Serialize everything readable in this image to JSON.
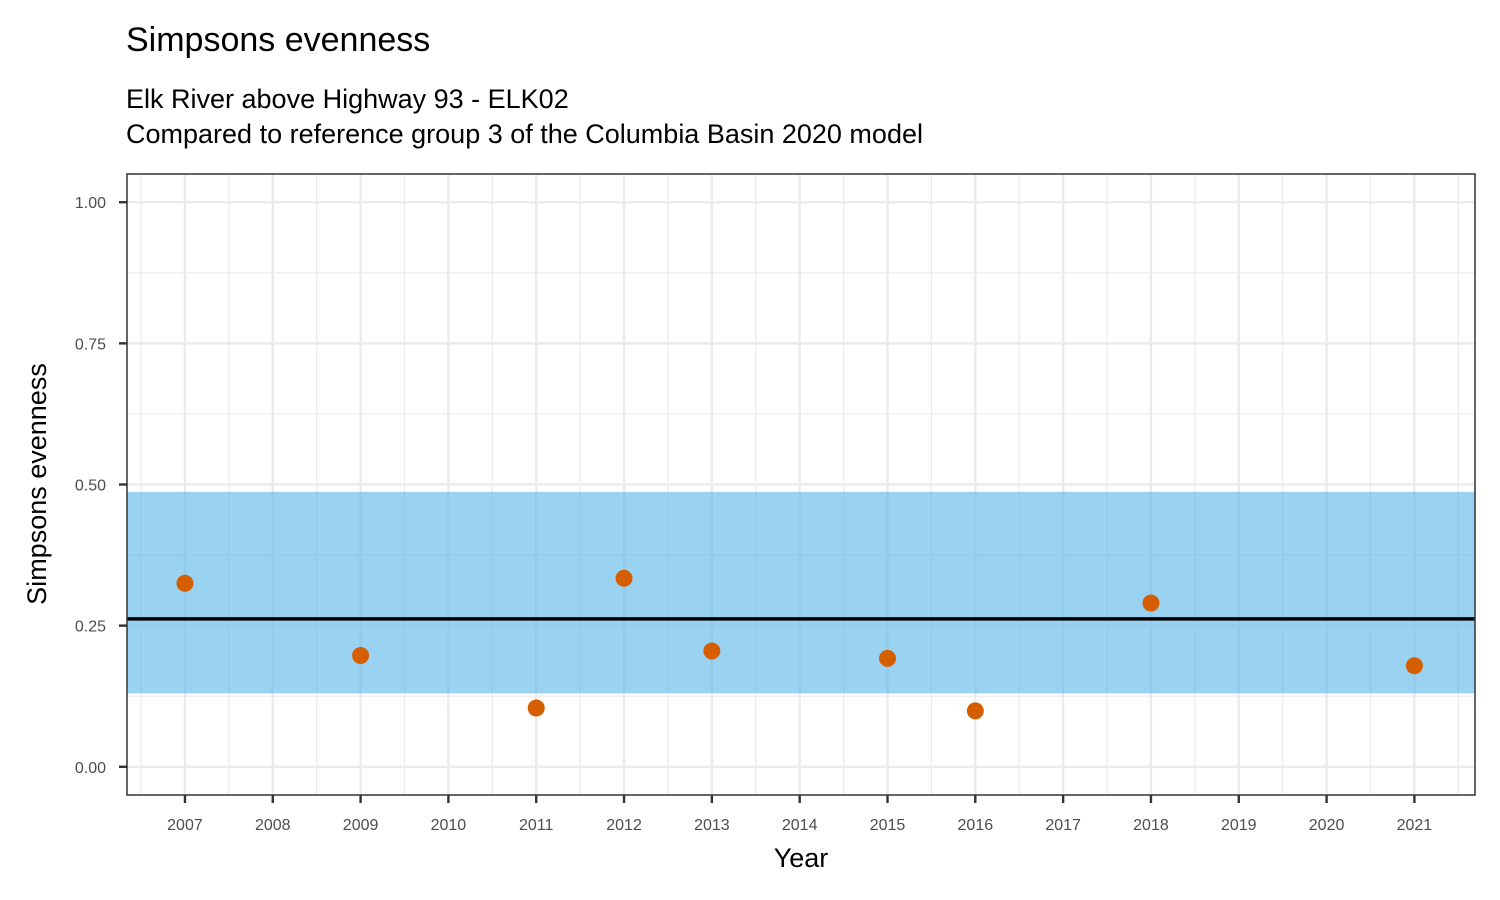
{
  "chart_data": {
    "type": "scatter",
    "title": "Simpsons evenness",
    "subtitle_lines": [
      "Elk River above Highway 93 - ELK02",
      "Compared to reference group 3 of the Columbia Basin 2020 model"
    ],
    "xlabel": "Year",
    "ylabel": "Simpsons evenness",
    "x_ticks": [
      "2007",
      "2008",
      "2009",
      "2010",
      "2011",
      "2012",
      "2013",
      "2014",
      "2015",
      "2016",
      "2017",
      "2018",
      "2019",
      "2020",
      "2021"
    ],
    "y_ticks": [
      "0.00",
      "0.25",
      "0.50",
      "0.75",
      "1.00"
    ],
    "ylim": [
      -0.05,
      1.05
    ],
    "xlim": [
      2006.34,
      2021.69
    ],
    "grid": true,
    "series": [
      {
        "x": [
          2007,
          2009,
          2011,
          2012,
          2013,
          2015,
          2016,
          2018,
          2021
        ],
        "y": [
          0.325,
          0.197,
          0.104,
          0.334,
          0.205,
          0.192,
          0.099,
          0.29,
          0.179
        ],
        "color": "#D55E00"
      }
    ],
    "reference_band": {
      "low": 0.13,
      "high": 0.487,
      "color": "#56B4E9"
    },
    "reference_line": {
      "value": 0.262,
      "color": "#000000"
    }
  }
}
